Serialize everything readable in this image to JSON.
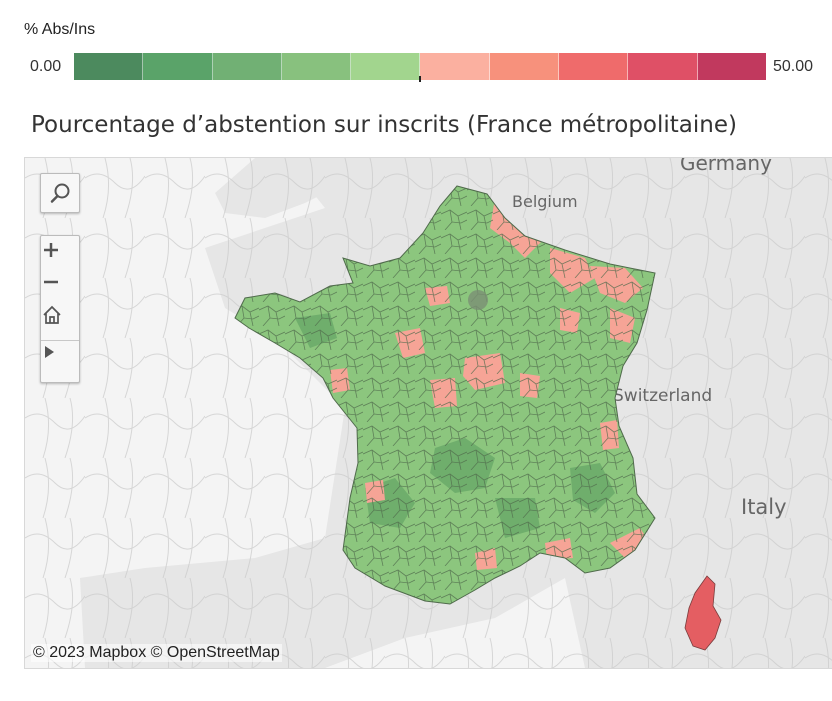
{
  "legend": {
    "title": "% Abs/Ins",
    "min_label": "0.00",
    "max_label": "50.00",
    "colors": [
      "#4c8a5e",
      "#5aa369",
      "#71b074",
      "#88c17e",
      "#a2d58e",
      "#fbb0a0",
      "#f7917c",
      "#ef6b6b",
      "#df5066",
      "#c1395e"
    ]
  },
  "map": {
    "title": "Pourcentage d’abstention sur inscrits (France métropolitaine)",
    "labels": {
      "germany": "Germany",
      "belgium": "Belgium",
      "switzerland": "Switzerland",
      "italy": "Italy"
    },
    "attribution": "© 2023 Mapbox  © OpenStreetMap",
    "colors": {
      "land": "#e6e6e6",
      "water": "#f4f4f4",
      "green": "#8cc67e",
      "dark_green": "#6fae6c",
      "pink": "#f6a496",
      "red": "#e45e62"
    }
  },
  "controls": {
    "search": "search-icon",
    "zoom_in": "plus-icon",
    "zoom_out": "minus-icon",
    "home": "home-icon",
    "play": "play-icon"
  }
}
